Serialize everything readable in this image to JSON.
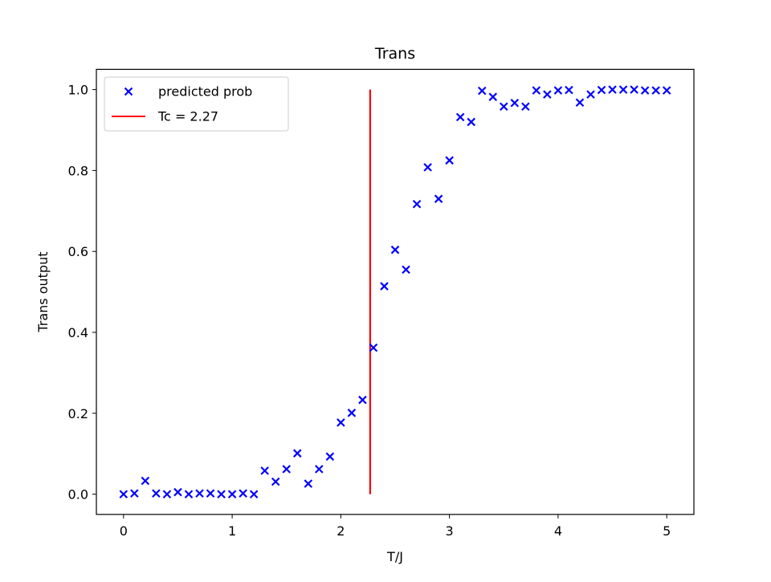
{
  "chart_data": {
    "type": "scatter",
    "title": "Trans",
    "xlabel": "T/J",
    "ylabel": "Trans output",
    "xlim": [
      -0.25,
      5.25
    ],
    "ylim": [
      -0.05,
      1.05
    ],
    "xticks": [
      0,
      1,
      2,
      3,
      4,
      5
    ],
    "xtick_labels": [
      "0",
      "1",
      "2",
      "3",
      "4",
      "5"
    ],
    "yticks": [
      0.0,
      0.2,
      0.4,
      0.6,
      0.8,
      1.0
    ],
    "ytick_labels": [
      "0.0",
      "0.2",
      "0.4",
      "0.6",
      "0.8",
      "1.0"
    ],
    "grid": false,
    "legend_position": "top-left",
    "series": [
      {
        "name": "predicted prob",
        "kind": "scatter",
        "marker": "x",
        "color": "#0000ff",
        "x": [
          0.0,
          0.1,
          0.2,
          0.3,
          0.4,
          0.5,
          0.6,
          0.7,
          0.8,
          0.9,
          1.0,
          1.1,
          1.2,
          1.3,
          1.4,
          1.5,
          1.6,
          1.7,
          1.8,
          1.9,
          2.0,
          2.1,
          2.2,
          2.3,
          2.4,
          2.5,
          2.6,
          2.7,
          2.8,
          2.9,
          3.0,
          3.1,
          3.2,
          3.3,
          3.4,
          3.5,
          3.6,
          3.7,
          3.8,
          3.9,
          4.0,
          4.1,
          4.2,
          4.3,
          4.4,
          4.5,
          4.6,
          4.7,
          4.8,
          4.9,
          5.0
        ],
        "y": [
          0.0,
          0.002,
          0.033,
          0.002,
          0.0,
          0.005,
          0.0,
          0.002,
          0.002,
          0.0,
          0.0,
          0.002,
          0.0,
          0.058,
          0.031,
          0.062,
          0.101,
          0.026,
          0.062,
          0.093,
          0.177,
          0.201,
          0.233,
          0.362,
          0.514,
          0.604,
          0.555,
          0.717,
          0.808,
          0.73,
          0.825,
          0.932,
          0.92,
          0.997,
          0.982,
          0.958,
          0.967,
          0.958,
          0.998,
          0.988,
          0.998,
          0.999,
          0.968,
          0.988,
          0.999,
          1.0,
          1.0,
          1.0,
          0.998,
          0.998,
          0.998
        ]
      },
      {
        "name": "Tc = 2.27",
        "kind": "vline",
        "color": "#ff0000",
        "x": 2.27,
        "y_range": [
          0,
          1
        ]
      }
    ]
  }
}
